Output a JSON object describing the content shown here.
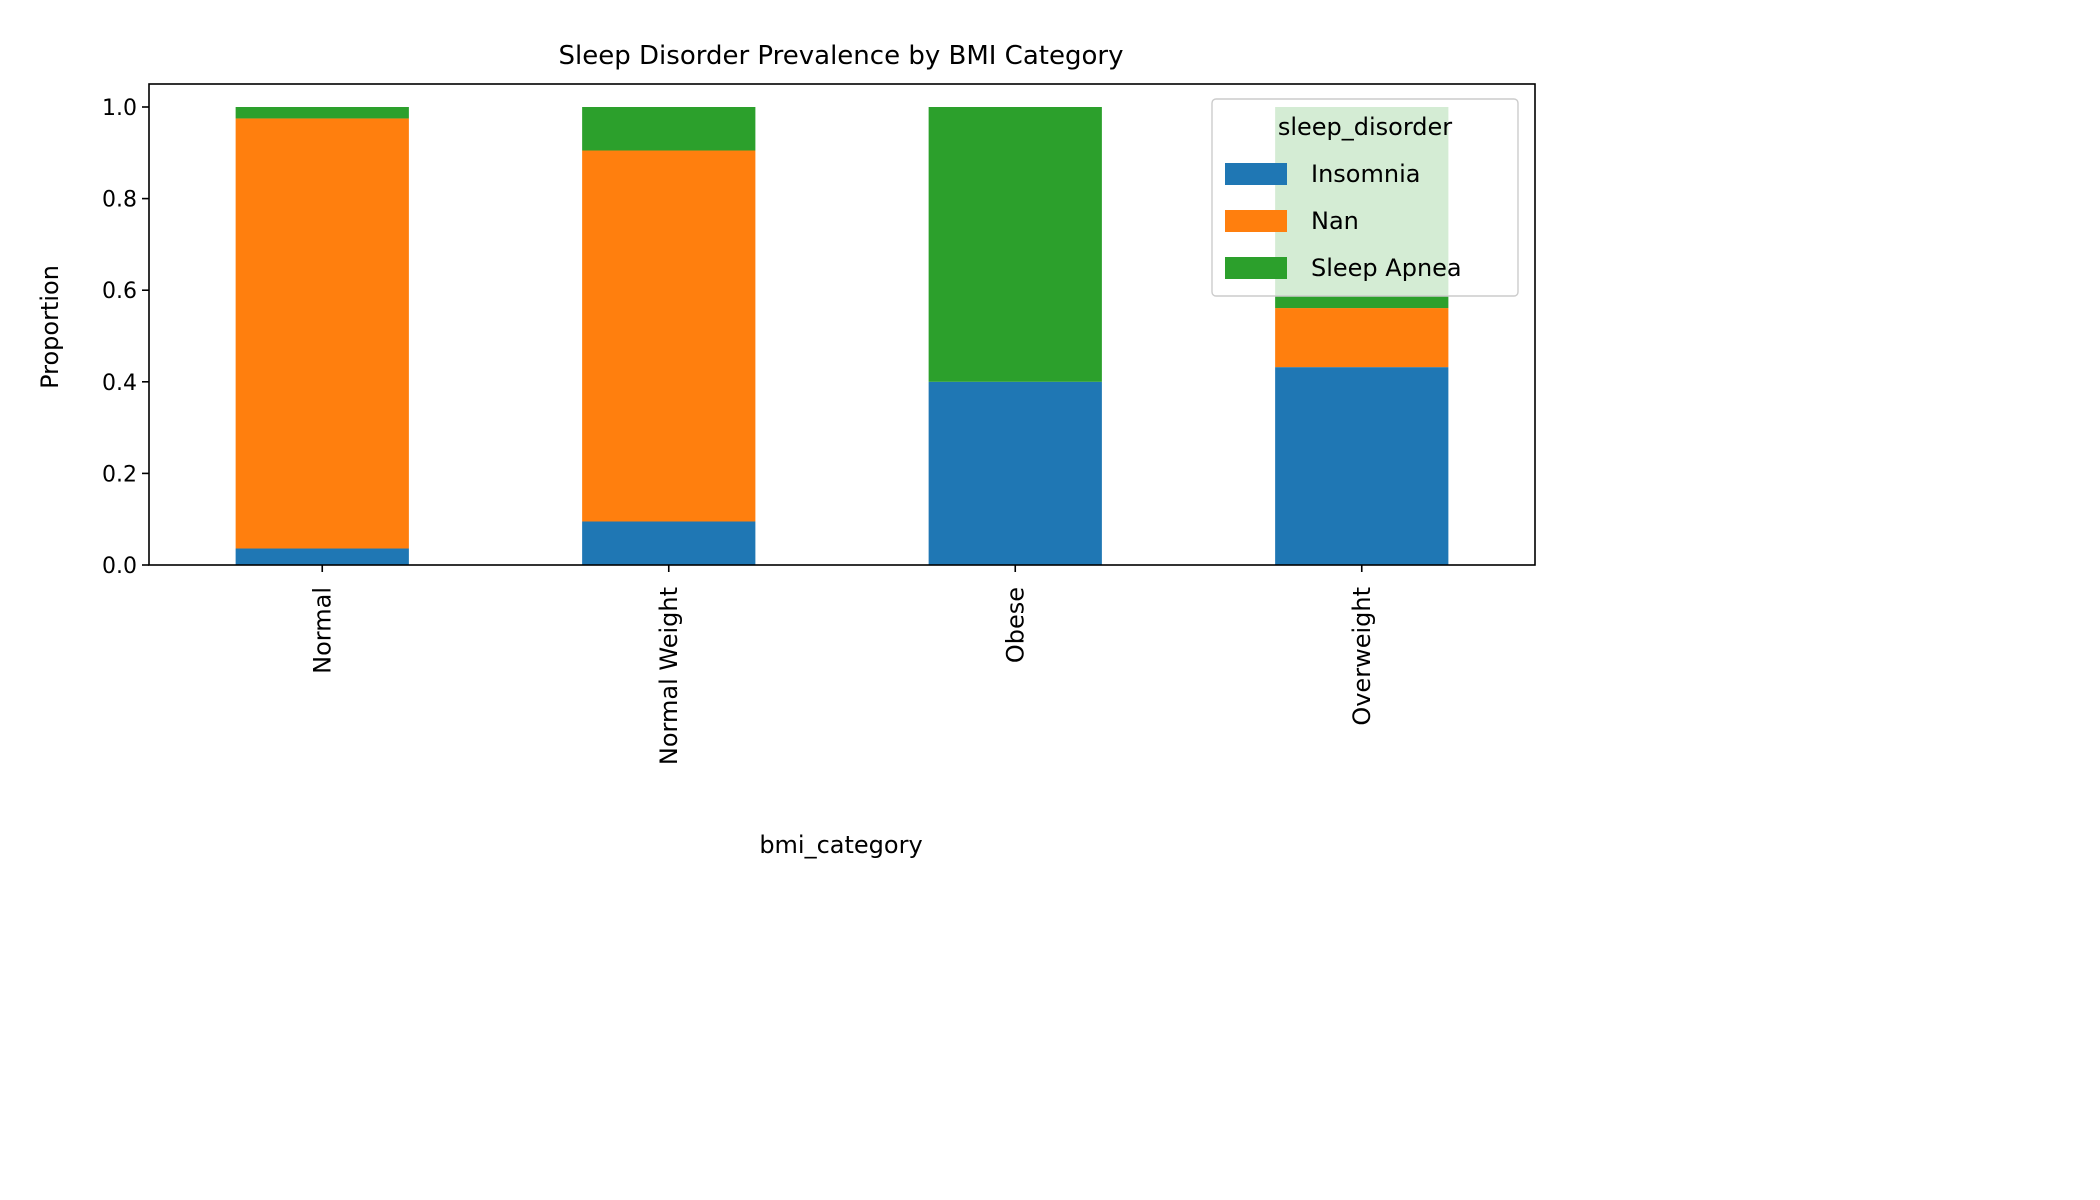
{
  "chart_data": {
    "type": "bar",
    "stacked": true,
    "title": "Sleep Disorder Prevalence by BMI Category",
    "xlabel": "bmi_category",
    "ylabel": "Proportion",
    "ylim": [
      0,
      1.05
    ],
    "yticks": [
      "0.0",
      "0.2",
      "0.4",
      "0.6",
      "0.8",
      "1.0"
    ],
    "categories": [
      "Normal",
      "Normal Weight",
      "Obese",
      "Overweight"
    ],
    "series": [
      {
        "name": "Insomnia",
        "color": "#1f77b4",
        "values": [
          0.036,
          0.095,
          0.4,
          0.432
        ]
      },
      {
        "name": "Nan",
        "color": "#ff7f0e",
        "values": [
          0.939,
          0.81,
          0.0,
          0.129
        ]
      },
      {
        "name": "Sleep Apnea",
        "color": "#2ca02c",
        "values": [
          0.025,
          0.095,
          0.6,
          0.439
        ]
      }
    ],
    "legend": {
      "title": "sleep_disorder",
      "position": "upper right"
    },
    "grid": false
  }
}
